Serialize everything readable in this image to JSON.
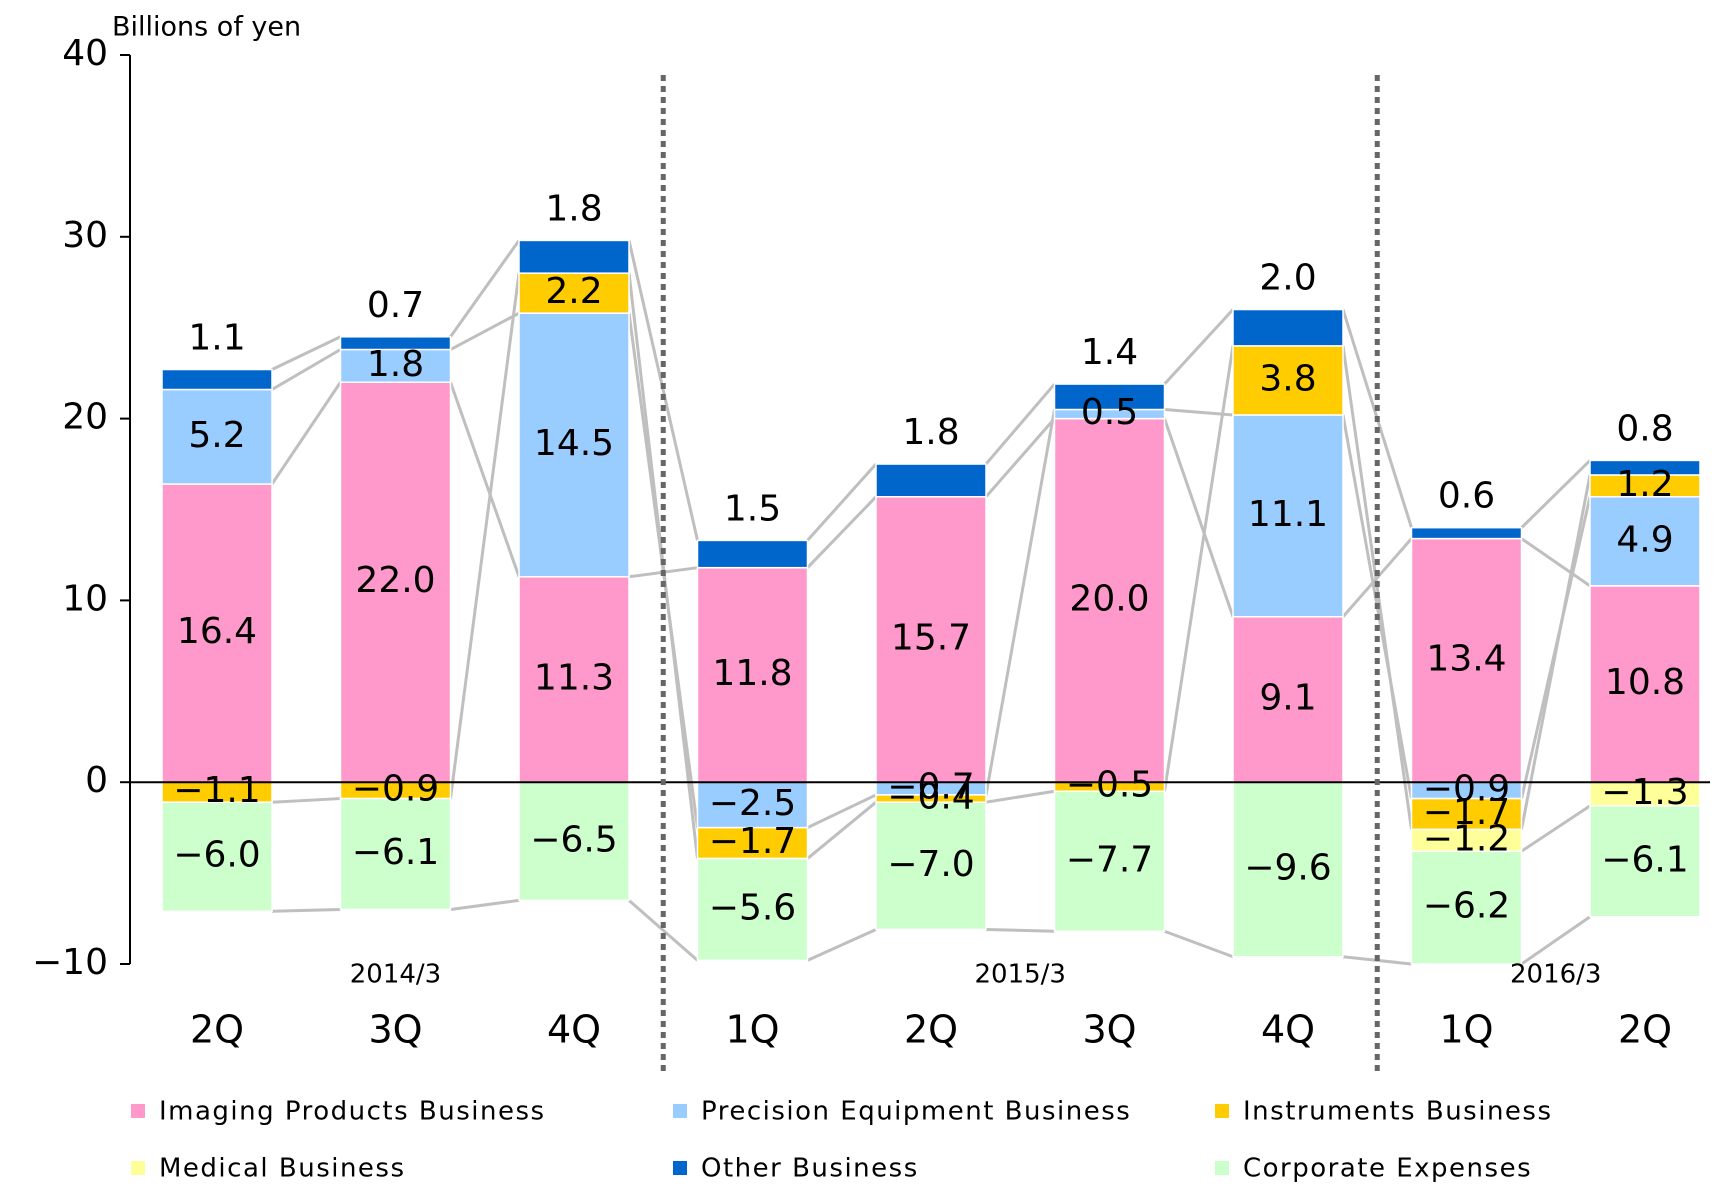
{
  "chart_data": {
    "type": "stacked_bar",
    "y_axis_label": "Billions of yen",
    "categories": [
      "2Q",
      "3Q",
      "4Q",
      "1Q",
      "2Q",
      "3Q",
      "4Q",
      "1Q",
      "2Q"
    ],
    "groups": [
      {
        "label": "2014/3",
        "start": 0,
        "end": 2
      },
      {
        "label": "2015/3",
        "start": 3,
        "end": 6
      },
      {
        "label": "2016/3",
        "start": 7,
        "end": 8
      }
    ],
    "series": [
      {
        "name": "Imaging Products Business",
        "color": "#ff99cc",
        "values": [
          16.4,
          22.0,
          11.3,
          11.8,
          15.7,
          20.0,
          9.1,
          13.4,
          10.8
        ],
        "value_labels": [
          "16.4",
          "22.0",
          "11.3",
          "11.8",
          "15.7",
          "20.0",
          "9.1",
          "13.4",
          "10.8"
        ]
      },
      {
        "name": "Precision Equipment Business",
        "color": "#99ccff",
        "values": [
          5.2,
          1.8,
          14.5,
          -2.5,
          -0.7,
          0.5,
          11.1,
          -0.9,
          4.9
        ],
        "value_labels": [
          "5.2",
          "1.8",
          "14.5",
          "−2.5",
          "−0.7",
          "0.5",
          "11.1",
          "−0.9",
          "4.9"
        ]
      },
      {
        "name": "Instruments Business",
        "color": "#ffcc00",
        "values": [
          -1.1,
          -0.9,
          2.2,
          -1.7,
          -0.4,
          -0.5,
          3.8,
          -1.7,
          1.2
        ],
        "value_labels": [
          "−1.1",
          "−0.9",
          "2.2",
          "−1.7",
          "−0.4",
          "−0.5",
          "3.8",
          "−1.7",
          "1.2"
        ]
      },
      {
        "name": "Medical Business",
        "color": "#ffff99",
        "values": [
          null,
          null,
          null,
          null,
          null,
          null,
          null,
          -1.2,
          -1.3
        ],
        "value_labels": [
          null,
          null,
          null,
          null,
          null,
          null,
          null,
          "−1.2",
          "−1.3"
        ]
      },
      {
        "name": "Other Business",
        "color": "#0066cc",
        "values": [
          1.1,
          0.7,
          1.8,
          1.5,
          1.8,
          1.4,
          2.0,
          0.6,
          0.8
        ],
        "value_labels": [
          "1.1",
          "0.7",
          "1.8",
          "1.5",
          "1.8",
          "1.4",
          "2.0",
          "0.6",
          "0.8"
        ]
      },
      {
        "name": "Corporate Expenses",
        "color": "#ccffcc",
        "values": [
          -6.0,
          -6.1,
          -6.5,
          -5.6,
          -7.0,
          -7.7,
          -9.6,
          -6.2,
          -6.1
        ],
        "value_labels": [
          "−6.0",
          "−6.1",
          "−6.5",
          "−5.6",
          "−7.0",
          "−7.7",
          "−9.6",
          "−6.2",
          "−6.1"
        ]
      }
    ],
    "ylim": [
      -10,
      40
    ],
    "yticks": [
      {
        "value": -10,
        "label": "−10"
      },
      0,
      10,
      20,
      30,
      40
    ],
    "legend": "bottom"
  }
}
